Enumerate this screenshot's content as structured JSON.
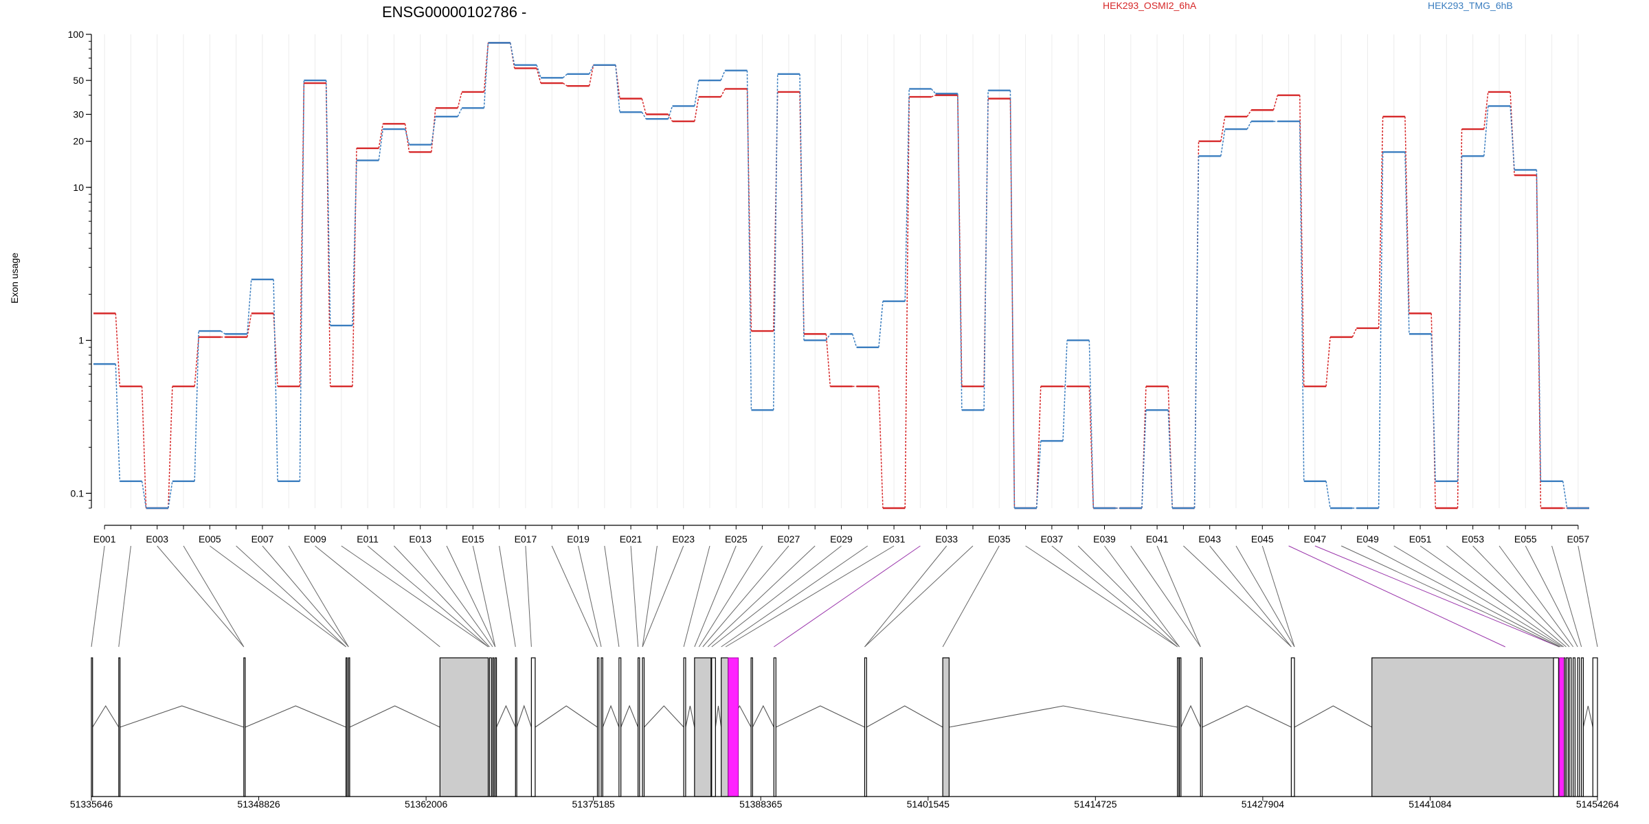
{
  "chart_data": {
    "type": "line",
    "title": "ENSG00000102786 -",
    "ylabel": "Exon usage",
    "yscale": "log",
    "ylim": [
      0.08,
      100
    ],
    "ytick_labels": [
      "100",
      "50",
      "30",
      "20",
      "10",
      "1",
      "0.1"
    ],
    "grid": true,
    "legend": "top",
    "categories": [
      "E001",
      "E002",
      "E003",
      "E004",
      "E005",
      "E006",
      "E007",
      "E008",
      "E009",
      "E010",
      "E011",
      "E012",
      "E013",
      "E014",
      "E015",
      "E016",
      "E017",
      "E018",
      "E019",
      "E020",
      "E021",
      "E022",
      "E023",
      "E024",
      "E025",
      "E026",
      "E027",
      "E028",
      "E029",
      "E030",
      "E031",
      "E032",
      "E033",
      "E034",
      "E035",
      "E036",
      "E037",
      "E038",
      "E039",
      "E040",
      "E041",
      "E042",
      "E043",
      "E044",
      "E045",
      "E046",
      "E047",
      "E048",
      "E049",
      "E050",
      "E051",
      "E052",
      "E053",
      "E054",
      "E055",
      "E056",
      "E057"
    ],
    "category_labels": [
      "E001",
      "E003",
      "E005",
      "E007",
      "E009",
      "E011",
      "E013",
      "E015",
      "E017",
      "E019",
      "E021",
      "E023",
      "E025",
      "E027",
      "E029",
      "E031",
      "E033",
      "E035",
      "E037",
      "E039",
      "E041",
      "E043",
      "E045",
      "E047",
      "E049",
      "E051",
      "E053",
      "E055",
      "E057"
    ],
    "series": [
      {
        "name": "HEK293_OSMI2_6hA",
        "color": "#d62728",
        "values": [
          1.5,
          0.5,
          0.08,
          0.5,
          1.05,
          1.05,
          1.5,
          0.5,
          48,
          0.5,
          18,
          26,
          17,
          33,
          42,
          88,
          60,
          48,
          46,
          63,
          38,
          30,
          27,
          39,
          44,
          1.15,
          42,
          1.1,
          0.5,
          0.5,
          0.08,
          39,
          40,
          0.5,
          38,
          0.08,
          0.5,
          0.5,
          0.08,
          0.08,
          0.5,
          0.08,
          20,
          29,
          32,
          40,
          0.5,
          1.05,
          1.2,
          29,
          1.5,
          0.08,
          24,
          42,
          12,
          0.08,
          0.08
        ]
      },
      {
        "name": "HEK293_TMG_6hB",
        "color": "#3a7dbf",
        "values": [
          0.7,
          0.12,
          0.08,
          0.12,
          1.15,
          1.1,
          2.5,
          0.12,
          50,
          1.25,
          15,
          24,
          19,
          29,
          33,
          88,
          63,
          52,
          55,
          63,
          31,
          28,
          34,
          50,
          58,
          0.35,
          55,
          1.0,
          1.1,
          0.9,
          1.8,
          44,
          41,
          0.35,
          43,
          0.08,
          0.22,
          1.0,
          0.08,
          0.08,
          0.35,
          0.08,
          16,
          24,
          27,
          27,
          0.12,
          0.08,
          0.08,
          17,
          1.1,
          0.12,
          16,
          34,
          13,
          0.12,
          0.08
        ]
      }
    ],
    "genomic_axis": {
      "ticks": [
        "51335646",
        "51348826",
        "51362006",
        "51375185",
        "51388365",
        "51401545",
        "51414725",
        "51427904",
        "51441084",
        "51454264"
      ]
    }
  }
}
